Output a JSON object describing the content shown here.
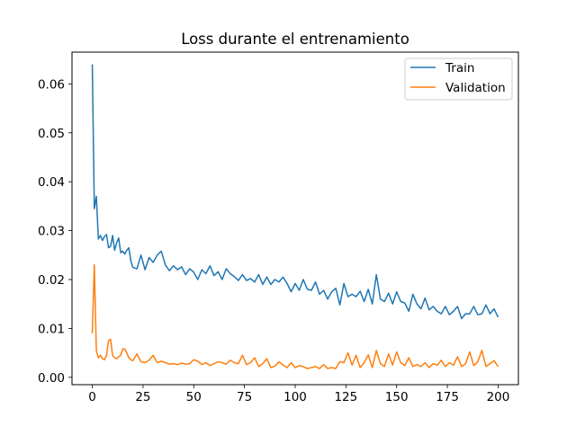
{
  "chart_data": {
    "type": "line",
    "title": "Loss durante el entrenamiento",
    "xlabel": "",
    "ylabel": "",
    "xlim": [
      -10,
      210
    ],
    "ylim": [
      -0.0015,
      0.0665
    ],
    "xticks": [
      0,
      25,
      50,
      75,
      100,
      125,
      150,
      175,
      200
    ],
    "yticks": [
      0.0,
      0.01,
      0.02,
      0.03,
      0.04,
      0.05,
      0.06
    ],
    "ytick_labels": [
      "0.00",
      "0.01",
      "0.02",
      "0.03",
      "0.04",
      "0.05",
      "0.06"
    ],
    "grid": false,
    "legend_position": "upper-right",
    "series": [
      {
        "name": "Train",
        "color": "#1f77b4",
        "x": [
          0,
          1,
          2,
          3,
          4,
          5,
          6,
          7,
          8,
          9,
          10,
          11,
          12,
          13,
          14,
          15,
          16,
          17,
          18,
          19,
          20,
          22,
          24,
          26,
          28,
          30,
          32,
          34,
          36,
          38,
          40,
          42,
          44,
          46,
          48,
          50,
          52,
          54,
          56,
          58,
          60,
          62,
          64,
          66,
          68,
          70,
          72,
          74,
          76,
          78,
          80,
          82,
          84,
          86,
          88,
          90,
          92,
          94,
          96,
          98,
          100,
          102,
          104,
          106,
          108,
          110,
          112,
          114,
          116,
          118,
          120,
          122,
          124,
          126,
          128,
          130,
          132,
          134,
          136,
          138,
          140,
          142,
          144,
          146,
          148,
          150,
          152,
          154,
          156,
          158,
          160,
          162,
          164,
          166,
          168,
          170,
          172,
          174,
          176,
          178,
          180,
          182,
          184,
          186,
          188,
          190,
          192,
          194,
          196,
          198,
          200
        ],
        "values": [
          0.064,
          0.0345,
          0.037,
          0.0283,
          0.029,
          0.028,
          0.0288,
          0.0292,
          0.0265,
          0.0268,
          0.029,
          0.026,
          0.0275,
          0.0285,
          0.0255,
          0.0258,
          0.0252,
          0.026,
          0.0265,
          0.0238,
          0.0225,
          0.0222,
          0.025,
          0.022,
          0.0245,
          0.0235,
          0.025,
          0.0258,
          0.023,
          0.0218,
          0.0228,
          0.022,
          0.0226,
          0.021,
          0.0222,
          0.0215,
          0.02,
          0.022,
          0.0212,
          0.0228,
          0.0208,
          0.0216,
          0.02,
          0.0222,
          0.0212,
          0.0206,
          0.0198,
          0.021,
          0.0198,
          0.0202,
          0.0195,
          0.021,
          0.019,
          0.0205,
          0.019,
          0.02,
          0.0195,
          0.0205,
          0.0192,
          0.0175,
          0.0192,
          0.0178,
          0.02,
          0.018,
          0.0178,
          0.0195,
          0.017,
          0.0178,
          0.016,
          0.0175,
          0.0182,
          0.0148,
          0.0192,
          0.0165,
          0.017,
          0.0165,
          0.0176,
          0.0155,
          0.018,
          0.015,
          0.021,
          0.016,
          0.0155,
          0.0172,
          0.015,
          0.0175,
          0.0155,
          0.0152,
          0.0135,
          0.017,
          0.015,
          0.014,
          0.0162,
          0.0138,
          0.0145,
          0.0135,
          0.013,
          0.0145,
          0.0128,
          0.0135,
          0.0145,
          0.012,
          0.013,
          0.013,
          0.0145,
          0.0128,
          0.013,
          0.0148,
          0.013,
          0.014,
          0.0123
        ]
      },
      {
        "name": "Validation",
        "color": "#ff7f0e",
        "x": [
          0,
          1,
          2,
          3,
          4,
          5,
          6,
          7,
          8,
          9,
          10,
          11,
          12,
          13,
          14,
          15,
          16,
          17,
          18,
          19,
          20,
          22,
          24,
          26,
          28,
          30,
          32,
          34,
          36,
          38,
          40,
          42,
          44,
          46,
          48,
          50,
          52,
          54,
          56,
          58,
          60,
          62,
          64,
          66,
          68,
          70,
          72,
          74,
          76,
          78,
          80,
          82,
          84,
          86,
          88,
          90,
          92,
          94,
          96,
          98,
          100,
          102,
          104,
          106,
          108,
          110,
          112,
          114,
          116,
          118,
          120,
          122,
          124,
          126,
          128,
          130,
          132,
          134,
          136,
          138,
          140,
          142,
          144,
          146,
          148,
          150,
          152,
          154,
          156,
          158,
          160,
          162,
          164,
          166,
          168,
          170,
          172,
          174,
          176,
          178,
          180,
          182,
          184,
          186,
          188,
          190,
          192,
          194,
          196,
          198,
          200
        ],
        "values": [
          0.009,
          0.023,
          0.0055,
          0.004,
          0.0045,
          0.0038,
          0.0036,
          0.0045,
          0.0075,
          0.0078,
          0.0045,
          0.004,
          0.0038,
          0.0042,
          0.0045,
          0.0058,
          0.0058,
          0.005,
          0.004,
          0.0036,
          0.0034,
          0.0048,
          0.0032,
          0.003,
          0.0035,
          0.0045,
          0.003,
          0.0033,
          0.003,
          0.0027,
          0.0028,
          0.0026,
          0.0029,
          0.0027,
          0.0028,
          0.0036,
          0.0033,
          0.0026,
          0.003,
          0.0024,
          0.0028,
          0.0032,
          0.003,
          0.0027,
          0.0035,
          0.003,
          0.0028,
          0.0045,
          0.0026,
          0.003,
          0.004,
          0.0022,
          0.0028,
          0.0038,
          0.002,
          0.0023,
          0.0032,
          0.0025,
          0.002,
          0.003,
          0.002,
          0.0024,
          0.0022,
          0.0018,
          0.002,
          0.0022,
          0.0018,
          0.0026,
          0.0018,
          0.002,
          0.0018,
          0.0032,
          0.003,
          0.005,
          0.0025,
          0.0045,
          0.002,
          0.003,
          0.0046,
          0.002,
          0.0055,
          0.0028,
          0.0022,
          0.0048,
          0.0025,
          0.0052,
          0.003,
          0.0024,
          0.004,
          0.0022,
          0.0026,
          0.0022,
          0.003,
          0.002,
          0.0028,
          0.0025,
          0.0035,
          0.0022,
          0.003,
          0.0025,
          0.0042,
          0.0022,
          0.0028,
          0.0052,
          0.0024,
          0.0032,
          0.0055,
          0.0022,
          0.0028,
          0.0034,
          0.0022
        ]
      }
    ]
  }
}
